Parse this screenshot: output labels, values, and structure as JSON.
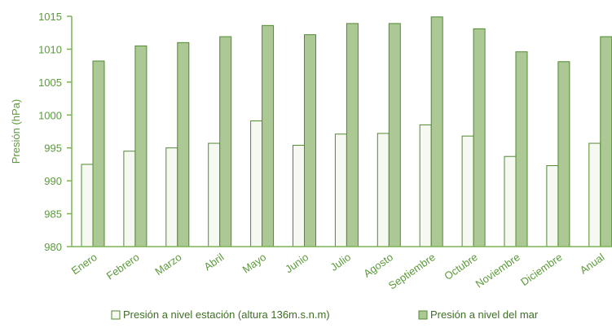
{
  "chart_data": {
    "type": "bar",
    "title": "",
    "xlabel": "",
    "ylabel": "Presión (hPa)",
    "ylim": [
      980,
      1015
    ],
    "yticks": [
      980,
      985,
      990,
      995,
      1000,
      1005,
      1010,
      1015
    ],
    "grid": false,
    "legend_position": "bottom",
    "categories": [
      "Enero",
      "Febrero",
      "Marzo",
      "Abril",
      "Mayo",
      "Junio",
      "Julio",
      "Agosto",
      "Septiembre",
      "Octubre",
      "Noviembre",
      "Diciembre",
      "Anual"
    ],
    "series": [
      {
        "name": "Presión a nivel estación (altura 136m.s.n.m)",
        "values": [
          992.5,
          994.5,
          995.0,
          995.7,
          999.1,
          995.4,
          997.1,
          997.2,
          998.5,
          996.8,
          993.7,
          992.3,
          995.7
        ]
      },
      {
        "name": "Presión a nivel del mar",
        "values": [
          1008.2,
          1010.5,
          1011.0,
          1011.9,
          1013.6,
          1012.2,
          1013.9,
          1013.9,
          1014.9,
          1013.1,
          1009.6,
          1008.1,
          1011.9
        ]
      }
    ],
    "colors": {
      "axis": "#7cb352",
      "text": "#5b9a3a",
      "series_station_fill": "#f6f9f2",
      "series_sea_fill": "#acc995",
      "bar_stroke": "#4f8a2e"
    }
  }
}
